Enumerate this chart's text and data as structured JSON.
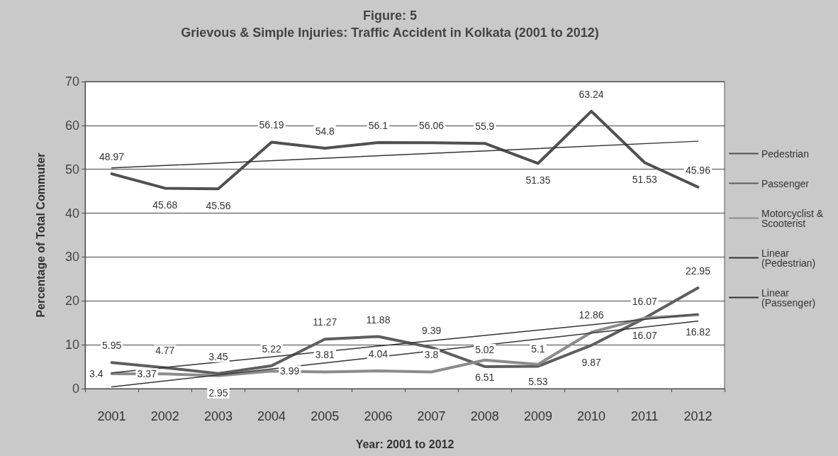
{
  "chart_data": {
    "type": "line",
    "title": "Figure: 5",
    "subtitle": "Grievous & Simple Injuries: Traffic Accident in Kolkata (2001 to 2012)",
    "xlabel": "Year: 2001 to 2012",
    "ylabel": "Percentage of Total Commuter",
    "categories": [
      "2001",
      "2002",
      "2003",
      "2004",
      "2005",
      "2006",
      "2007",
      "2008",
      "2009",
      "2010",
      "2011",
      "2012"
    ],
    "series": [
      {
        "name": "Pedestrian",
        "color": "#505050",
        "values": [
          48.97,
          45.68,
          45.56,
          56.19,
          54.8,
          56.1,
          56.06,
          55.9,
          51.35,
          63.24,
          51.53,
          45.96
        ],
        "value_labels": [
          "48.97",
          "45.68",
          "45.56",
          "56.19",
          "54.8",
          "56.1",
          "56.06",
          "55.9",
          "51.35",
          "63.24",
          "51.53",
          "45.96"
        ]
      },
      {
        "name": "Passenger",
        "color": "#5e5e5e",
        "values": [
          5.95,
          4.77,
          3.45,
          5.22,
          11.27,
          11.88,
          9.39,
          5.02,
          5.1,
          9.87,
          16.07,
          22.95
        ],
        "value_labels": [
          "5.95",
          "4.77",
          "3.45",
          "5.22",
          "11.27",
          "11.88",
          "9.39",
          "5.02",
          "5.1",
          "9.87",
          "16.07",
          "22.95"
        ]
      },
      {
        "name": "Motorcyclist & Scooterist",
        "color": "#8c8c8c",
        "values": [
          3.4,
          3.37,
          2.95,
          3.99,
          3.81,
          4.04,
          3.8,
          6.51,
          5.53,
          12.86,
          16.07,
          16.82
        ],
        "value_labels": [
          "3.4",
          "3.37",
          "2.95",
          "3.99",
          "3.81",
          "4.04",
          "3.8",
          "6.51",
          "5.53",
          "12.86",
          "16.07",
          "16.82"
        ]
      },
      {
        "name": "Linear (Pedestrian)",
        "color": "#333333",
        "values": [
          50.3,
          null,
          null,
          null,
          null,
          null,
          null,
          null,
          null,
          null,
          null,
          56.4
        ]
      },
      {
        "name": "Linear (Passenger)",
        "color": "#333333",
        "values": [
          3.6,
          null,
          null,
          null,
          null,
          null,
          null,
          null,
          null,
          null,
          null,
          17.0
        ]
      },
      {
        "color": "#333333",
        "values": [
          0.4,
          null,
          null,
          null,
          null,
          null,
          null,
          null,
          null,
          null,
          null,
          15.4
        ]
      }
    ],
    "ylim": [
      0,
      70
    ],
    "yticks": [
      0,
      10,
      20,
      30,
      40,
      50,
      60,
      70
    ],
    "grid": "y",
    "legend": "right",
    "marker": "none",
    "line_style": "solid"
  }
}
